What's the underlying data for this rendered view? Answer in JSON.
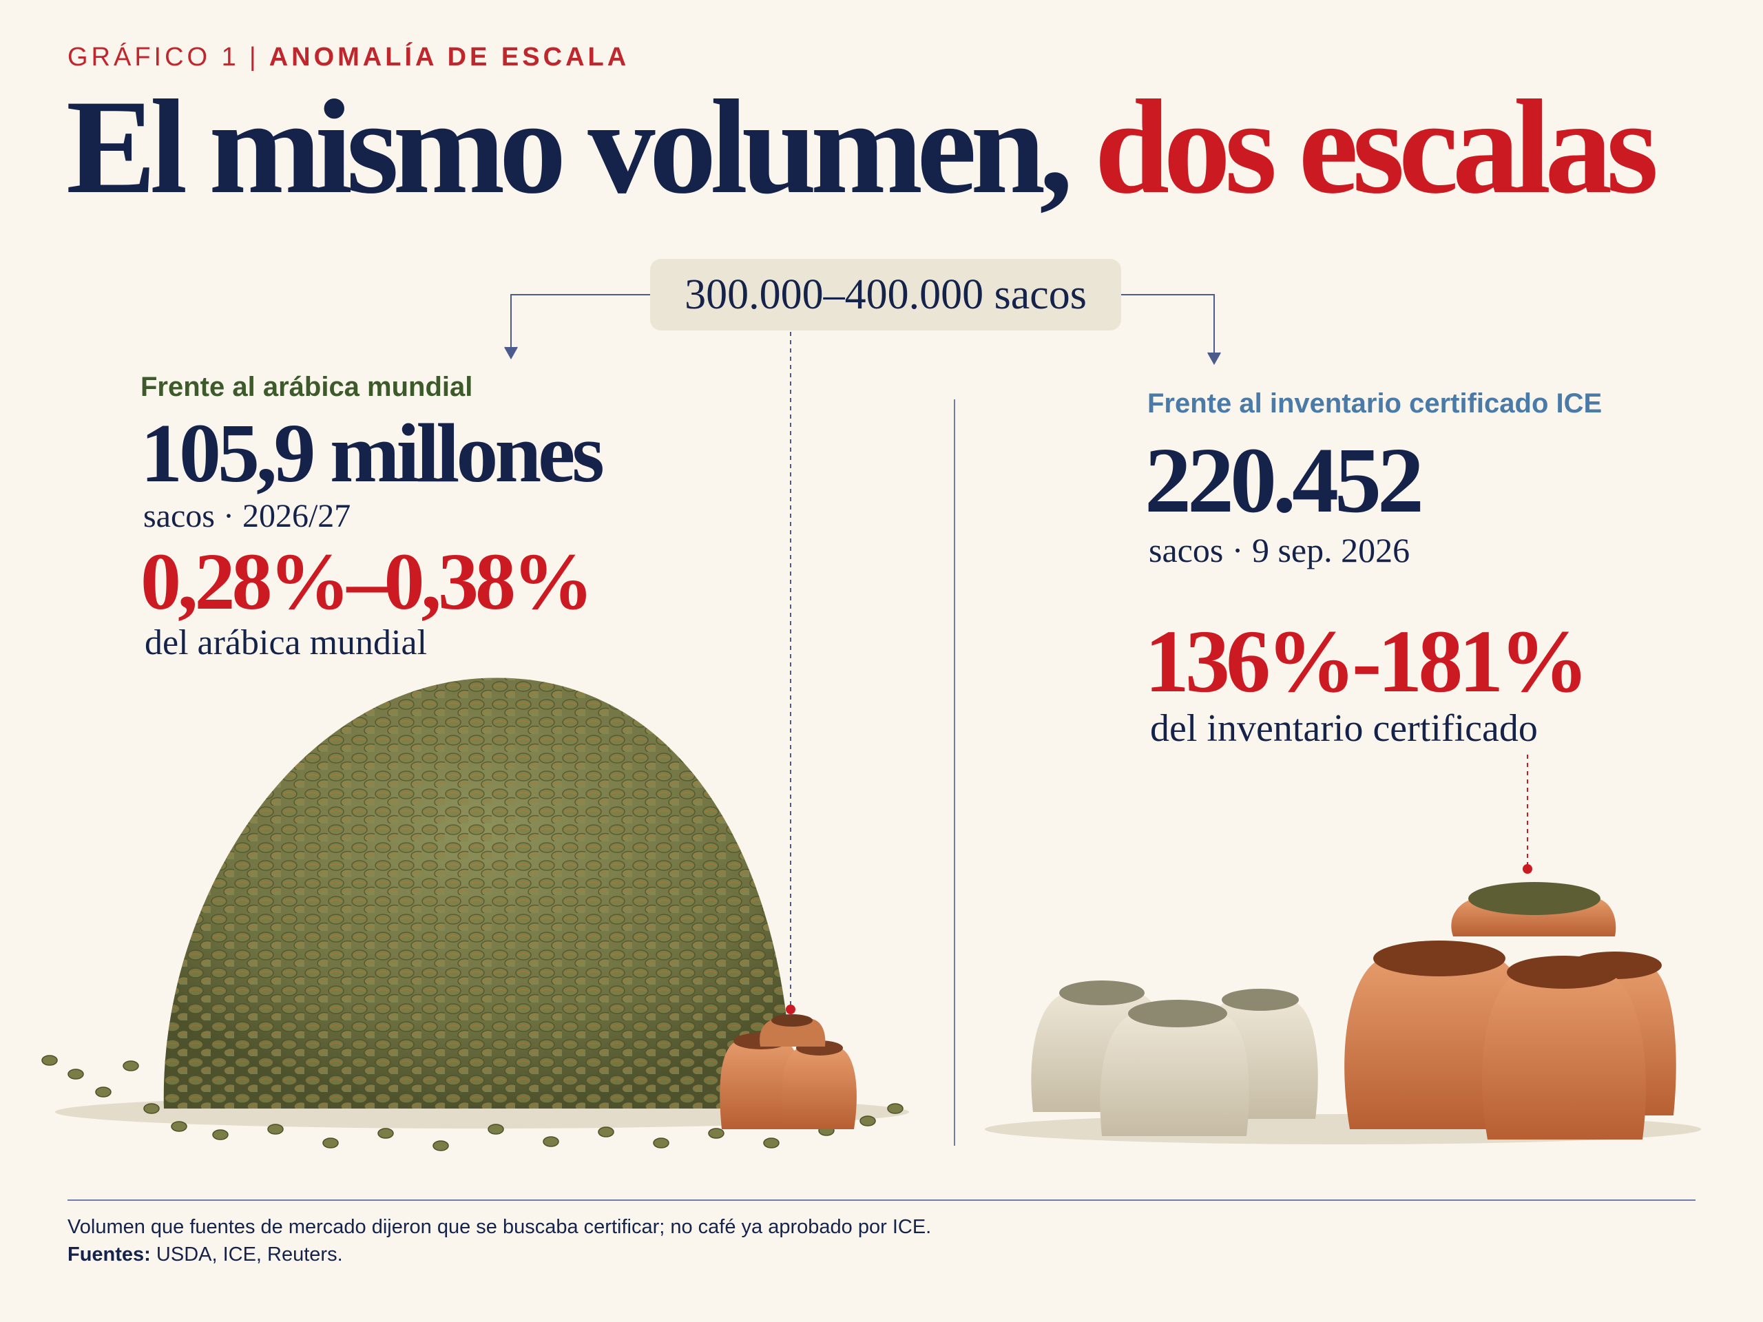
{
  "header": {
    "kicker_label": "GRÁFICO 1",
    "kicker_separator": "|",
    "kicker_topic": "ANOMALÍA DE ESCALA",
    "title_part1": "El mismo volumen,",
    "title_part2": "dos escalas"
  },
  "volume_pill": "300.000–400.000 sacos",
  "left_panel": {
    "label": "Frente al arábica mundial",
    "value": "105,9 millones",
    "subtitle": "sacos · 2026/27",
    "share": "0,28%–0,38%",
    "share_desc": "del arábica mundial"
  },
  "right_panel": {
    "label": "Frente al inventario certificado ICE",
    "value": "220.452",
    "subtitle": "sacos · 9 sep. 2026",
    "share": "136%-181%",
    "share_desc": "del inventario certificado"
  },
  "footer": {
    "note": "Volumen que fuentes de mercado dijeron que se buscaba certificar; no café ya aprobado por ICE.",
    "sources_label": "Fuentes:",
    "sources": "USDA, ICE, Reuters."
  },
  "colors": {
    "navy": "#15224a",
    "red": "#cc1a22",
    "green_label": "#3d5a2a",
    "blue_label": "#4a7aa8",
    "background": "#faf6ee",
    "pill": "#ebe5d6"
  },
  "icons": [
    "coffee-bean-pile",
    "coffee-sack",
    "arrow-down-icon"
  ]
}
